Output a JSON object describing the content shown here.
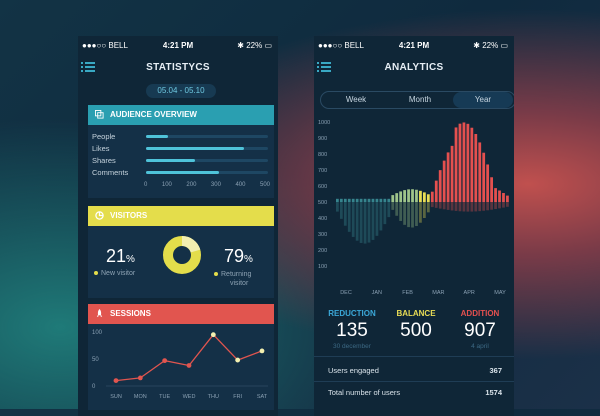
{
  "status": {
    "carrier": "●●●○○ BELL",
    "time": "4:21 PM",
    "battery": "22%"
  },
  "left": {
    "title": "STATISTYCS",
    "date_range": "05.04 - 05.10",
    "audience": {
      "title": "AUDIENCE OVERVIEW",
      "rows": [
        {
          "label": "People",
          "value": 90
        },
        {
          "label": "Likes",
          "value": 400
        },
        {
          "label": "Shares",
          "value": 200
        },
        {
          "label": "Comments",
          "value": 300
        }
      ],
      "ticks": [
        "0",
        "100",
        "200",
        "300",
        "400",
        "500"
      ]
    },
    "visitors": {
      "title": "VISITORS",
      "new_value": "21",
      "new_unit": "%",
      "new_label": "New visitor",
      "ret_value": "79",
      "ret_unit": "%",
      "ret_label_1": "Returning",
      "ret_label_2": "visitor",
      "new_color": "#e4dd4b",
      "ret_color": "#e4dd4b"
    },
    "sessions": {
      "title": "SESSIONS",
      "yticks": [
        "100",
        "50",
        "0"
      ],
      "days": [
        "SUN",
        "MON",
        "TUE",
        "WED",
        "THU",
        "FRI",
        "SAT"
      ],
      "values": [
        10,
        15,
        47,
        38,
        95,
        48,
        65
      ]
    }
  },
  "right": {
    "title": "ANALYTICS",
    "tabs": [
      "Week",
      "Month",
      "Year"
    ],
    "active_tab": "Year",
    "yticks": [
      "1000",
      "900",
      "800",
      "700",
      "600",
      "500",
      "400",
      "300",
      "200",
      "100"
    ],
    "months": [
      "DEC",
      "JAN",
      "FEB",
      "MAR",
      "APR",
      "MAY"
    ],
    "stats": [
      {
        "label": "REDUCTION",
        "value": "135",
        "sub": "30 december",
        "color": "#3ba8d8"
      },
      {
        "label": "BALANCE",
        "value": "500",
        "sub": "",
        "color": "#e9dd55"
      },
      {
        "label": "ADDITION",
        "value": "907",
        "sub": "4 april",
        "color": "#e4504f"
      }
    ],
    "rows": [
      {
        "label": "Users engaged",
        "value": "367"
      },
      {
        "label": "Total number of users",
        "value": "1574"
      }
    ]
  },
  "colors": {
    "teal": "#2a9fb1",
    "yellow": "#e4dd4b",
    "coral": "#e1554f"
  }
}
